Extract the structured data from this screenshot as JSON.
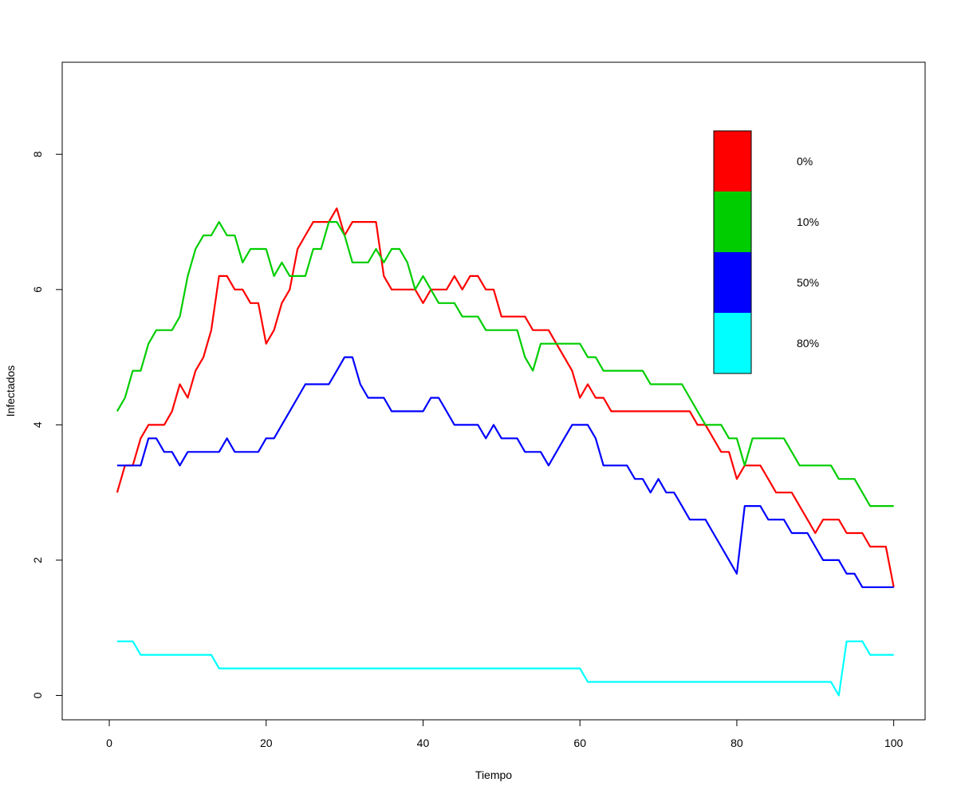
{
  "chart_data": {
    "type": "line",
    "title": "",
    "xlabel": "Tiempo",
    "ylabel": "Infectados",
    "xlim": [
      -6,
      104
    ],
    "ylim": [
      -0.36,
      9.36
    ],
    "xticks": [
      "0",
      "20",
      "40",
      "60",
      "80",
      "100"
    ],
    "yticks": [
      "0",
      "2",
      "4",
      "6",
      "8"
    ],
    "legend": {
      "placement": "top-right",
      "entries": [
        {
          "label": "0%",
          "color": "#ff0000"
        },
        {
          "label": "10%",
          "color": "#00cd00"
        },
        {
          "label": "50%",
          "color": "#0000ff"
        },
        {
          "label": "80%",
          "color": "#00ffff"
        }
      ]
    },
    "x": [
      1,
      2,
      3,
      4,
      5,
      6,
      7,
      8,
      9,
      10,
      11,
      12,
      13,
      14,
      15,
      16,
      17,
      18,
      19,
      20,
      21,
      22,
      23,
      24,
      25,
      26,
      27,
      28,
      29,
      30,
      31,
      32,
      33,
      34,
      35,
      36,
      37,
      38,
      39,
      40,
      41,
      42,
      43,
      44,
      45,
      46,
      47,
      48,
      49,
      50,
      51,
      52,
      53,
      54,
      55,
      56,
      57,
      58,
      59,
      60,
      61,
      62,
      63,
      64,
      65,
      66,
      67,
      68,
      69,
      70,
      71,
      72,
      73,
      74,
      75,
      76,
      77,
      78,
      79,
      80,
      81,
      82,
      83,
      84,
      85,
      86,
      87,
      88,
      89,
      90,
      91,
      92,
      93,
      94,
      95,
      96,
      97,
      98,
      99,
      100
    ],
    "series": [
      {
        "name": "0%",
        "color": "#ff0000",
        "values": [
          3.0,
          3.4,
          3.4,
          3.8,
          4.0,
          4.0,
          4.0,
          4.2,
          4.6,
          4.4,
          4.8,
          5.0,
          5.4,
          6.2,
          6.2,
          6.0,
          6.0,
          5.8,
          5.8,
          5.2,
          5.4,
          5.8,
          6.0,
          6.6,
          6.8,
          7.0,
          7.0,
          7.0,
          7.2,
          6.8,
          7.0,
          7.0,
          7.0,
          7.0,
          6.2,
          6.0,
          6.0,
          6.0,
          6.0,
          5.8,
          6.0,
          6.0,
          6.0,
          6.2,
          6.0,
          6.2,
          6.2,
          6.0,
          6.0,
          5.6,
          5.6,
          5.6,
          5.6,
          5.4,
          5.4,
          5.4,
          5.2,
          5.0,
          4.8,
          4.4,
          4.6,
          4.4,
          4.4,
          4.2,
          4.2,
          4.2,
          4.2,
          4.2,
          4.2,
          4.2,
          4.2,
          4.2,
          4.2,
          4.2,
          4.0,
          4.0,
          3.8,
          3.6,
          3.6,
          3.2,
          3.4,
          3.4,
          3.4,
          3.2,
          3.0,
          3.0,
          3.0,
          2.8,
          2.6,
          2.4,
          2.6,
          2.6,
          2.6,
          2.4,
          2.4,
          2.4,
          2.2,
          2.2,
          2.2,
          1.6
        ]
      },
      {
        "name": "10%",
        "color": "#00cd00",
        "values": [
          4.2,
          4.4,
          4.8,
          4.8,
          5.2,
          5.4,
          5.4,
          5.4,
          5.6,
          6.2,
          6.6,
          6.8,
          6.8,
          7.0,
          6.8,
          6.8,
          6.4,
          6.6,
          6.6,
          6.6,
          6.2,
          6.4,
          6.2,
          6.2,
          6.2,
          6.6,
          6.6,
          7.0,
          7.0,
          6.8,
          6.4,
          6.4,
          6.4,
          6.6,
          6.4,
          6.6,
          6.6,
          6.4,
          6.0,
          6.2,
          6.0,
          5.8,
          5.8,
          5.8,
          5.6,
          5.6,
          5.6,
          5.4,
          5.4,
          5.4,
          5.4,
          5.4,
          5.0,
          4.8,
          5.2,
          5.2,
          5.2,
          5.2,
          5.2,
          5.2,
          5.0,
          5.0,
          4.8,
          4.8,
          4.8,
          4.8,
          4.8,
          4.8,
          4.6,
          4.6,
          4.6,
          4.6,
          4.6,
          4.4,
          4.2,
          4.0,
          4.0,
          4.0,
          3.8,
          3.8,
          3.4,
          3.8,
          3.8,
          3.8,
          3.8,
          3.8,
          3.6,
          3.4,
          3.4,
          3.4,
          3.4,
          3.4,
          3.2,
          3.2,
          3.2,
          3.0,
          2.8,
          2.8,
          2.8,
          2.8
        ]
      },
      {
        "name": "50%",
        "color": "#0000ff",
        "values": [
          3.4,
          3.4,
          3.4,
          3.4,
          3.8,
          3.8,
          3.6,
          3.6,
          3.4,
          3.6,
          3.6,
          3.6,
          3.6,
          3.6,
          3.8,
          3.6,
          3.6,
          3.6,
          3.6,
          3.8,
          3.8,
          4.0,
          4.2,
          4.4,
          4.6,
          4.6,
          4.6,
          4.6,
          4.8,
          5.0,
          5.0,
          4.6,
          4.4,
          4.4,
          4.4,
          4.2,
          4.2,
          4.2,
          4.2,
          4.2,
          4.4,
          4.4,
          4.2,
          4.0,
          4.0,
          4.0,
          4.0,
          3.8,
          4.0,
          3.8,
          3.8,
          3.8,
          3.6,
          3.6,
          3.6,
          3.4,
          3.6,
          3.8,
          4.0,
          4.0,
          4.0,
          3.8,
          3.4,
          3.4,
          3.4,
          3.4,
          3.2,
          3.2,
          3.0,
          3.2,
          3.0,
          3.0,
          2.8,
          2.6,
          2.6,
          2.6,
          2.4,
          2.2,
          2.0,
          1.8,
          2.8,
          2.8,
          2.8,
          2.6,
          2.6,
          2.6,
          2.4,
          2.4,
          2.4,
          2.2,
          2.0,
          2.0,
          2.0,
          1.8,
          1.8,
          1.6,
          1.6,
          1.6,
          1.6,
          1.6
        ]
      },
      {
        "name": "80%",
        "color": "#00ffff",
        "values": [
          0.8,
          0.8,
          0.8,
          0.6,
          0.6,
          0.6,
          0.6,
          0.6,
          0.6,
          0.6,
          0.6,
          0.6,
          0.6,
          0.4,
          0.4,
          0.4,
          0.4,
          0.4,
          0.4,
          0.4,
          0.4,
          0.4,
          0.4,
          0.4,
          0.4,
          0.4,
          0.4,
          0.4,
          0.4,
          0.4,
          0.4,
          0.4,
          0.4,
          0.4,
          0.4,
          0.4,
          0.4,
          0.4,
          0.4,
          0.4,
          0.4,
          0.4,
          0.4,
          0.4,
          0.4,
          0.4,
          0.4,
          0.4,
          0.4,
          0.4,
          0.4,
          0.4,
          0.4,
          0.4,
          0.4,
          0.4,
          0.4,
          0.4,
          0.4,
          0.4,
          0.2,
          0.2,
          0.2,
          0.2,
          0.2,
          0.2,
          0.2,
          0.2,
          0.2,
          0.2,
          0.2,
          0.2,
          0.2,
          0.2,
          0.2,
          0.2,
          0.2,
          0.2,
          0.2,
          0.2,
          0.2,
          0.2,
          0.2,
          0.2,
          0.2,
          0.2,
          0.2,
          0.2,
          0.2,
          0.2,
          0.2,
          0.2,
          0.0,
          0.8,
          0.8,
          0.8,
          0.6,
          0.6,
          0.6,
          0.6
        ]
      }
    ]
  }
}
